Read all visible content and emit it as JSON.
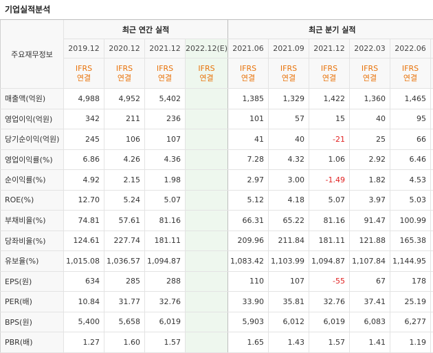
{
  "page": {
    "title": "기업실적분석"
  },
  "table": {
    "row_header_label": "주요재무정보",
    "annual_group_label": "최근 연간 실적",
    "quarter_group_label": "최근 분기 실적",
    "annual_periods": [
      "2019.12",
      "2020.12",
      "2021.12",
      "2022.12(E)"
    ],
    "quarter_periods": [
      "2021.06",
      "2021.09",
      "2021.12",
      "2022.03",
      "2022.06"
    ],
    "ifrs_line1": "IFRS",
    "ifrs_line2": "연결",
    "estimate_bg": "#eef7ee",
    "ifrs_color": "#e8730a",
    "negative_color": "#e02020",
    "rows": [
      {
        "label": "매출액(억원)",
        "annual": [
          "4,988",
          "4,952",
          "5,402",
          ""
        ],
        "quarter": [
          "1,385",
          "1,329",
          "1,422",
          "1,360",
          "1,465"
        ]
      },
      {
        "label": "영업이익(억원)",
        "annual": [
          "342",
          "211",
          "236",
          ""
        ],
        "quarter": [
          "101",
          "57",
          "15",
          "40",
          "95"
        ]
      },
      {
        "label": "당기순이익(억원)",
        "annual": [
          "245",
          "106",
          "107",
          ""
        ],
        "quarter": [
          "41",
          "40",
          "-21",
          "25",
          "66"
        ]
      },
      {
        "label": "영업이익률(%)",
        "annual": [
          "6.86",
          "4.26",
          "4.36",
          ""
        ],
        "quarter": [
          "7.28",
          "4.32",
          "1.06",
          "2.92",
          "6.46"
        ]
      },
      {
        "label": "순이익률(%)",
        "annual": [
          "4.92",
          "2.15",
          "1.98",
          ""
        ],
        "quarter": [
          "2.97",
          "3.00",
          "-1.49",
          "1.82",
          "4.53"
        ]
      },
      {
        "label": "ROE(%)",
        "annual": [
          "12.70",
          "5.24",
          "5.07",
          ""
        ],
        "quarter": [
          "5.12",
          "4.18",
          "5.07",
          "3.97",
          "5.03"
        ]
      },
      {
        "label": "부채비율(%)",
        "annual": [
          "74.81",
          "57.61",
          "81.16",
          ""
        ],
        "quarter": [
          "66.31",
          "65.22",
          "81.16",
          "91.47",
          "100.99"
        ]
      },
      {
        "label": "당좌비율(%)",
        "annual": [
          "124.61",
          "227.74",
          "181.11",
          ""
        ],
        "quarter": [
          "209.96",
          "211.84",
          "181.11",
          "121.88",
          "165.38"
        ]
      },
      {
        "label": "유보율(%)",
        "annual": [
          "1,015.08",
          "1,036.57",
          "1,094.87",
          ""
        ],
        "quarter": [
          "1,083.42",
          "1,103.99",
          "1,094.87",
          "1,107.84",
          "1,144.95"
        ]
      },
      {
        "label": "EPS(원)",
        "annual": [
          "634",
          "285",
          "288",
          ""
        ],
        "quarter": [
          "110",
          "107",
          "-55",
          "67",
          "178"
        ]
      },
      {
        "label": "PER(배)",
        "annual": [
          "10.84",
          "31.77",
          "32.76",
          ""
        ],
        "quarter": [
          "33.90",
          "35.81",
          "32.76",
          "37.41",
          "25.19"
        ]
      },
      {
        "label": "BPS(원)",
        "annual": [
          "5,400",
          "5,658",
          "6,019",
          ""
        ],
        "quarter": [
          "5,903",
          "6,012",
          "6,019",
          "6,083",
          "6,277"
        ]
      },
      {
        "label": "PBR(배)",
        "annual": [
          "1.27",
          "1.60",
          "1.57",
          ""
        ],
        "quarter": [
          "1.65",
          "1.43",
          "1.57",
          "1.41",
          "1.19"
        ]
      }
    ]
  }
}
